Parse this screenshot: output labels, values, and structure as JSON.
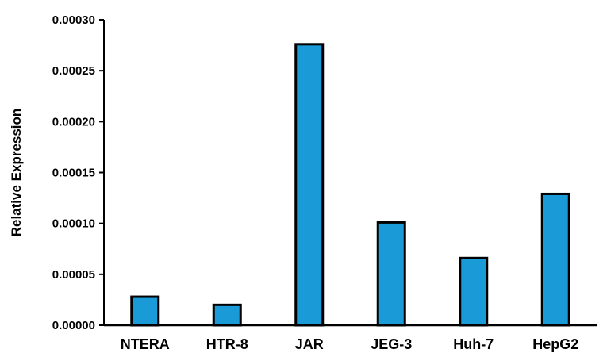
{
  "chart_data": {
    "type": "bar",
    "title": "",
    "xlabel": "",
    "ylabel": "Relative Expression",
    "categories": [
      "NTERA",
      "HTR-8",
      "JAR",
      "JEG-3",
      "Huh-7",
      "HepG2"
    ],
    "values": [
      2.8e-05,
      2e-05,
      0.000276,
      0.000101,
      6.6e-05,
      0.000129
    ],
    "ylim": [
      0,
      0.0003
    ],
    "yticks": [
      "0.00000",
      "0.00005",
      "0.00010",
      "0.00015",
      "0.00020",
      "0.00025",
      "0.00030"
    ],
    "yticks_values": [
      0,
      5e-05,
      0.0001,
      0.00015,
      0.0002,
      0.00025,
      0.0003
    ],
    "grid": false,
    "legend": "none",
    "colors": {
      "bar_fill": "#1a9ad6",
      "bar_stroke": "#000000",
      "axis": "#000000"
    }
  }
}
